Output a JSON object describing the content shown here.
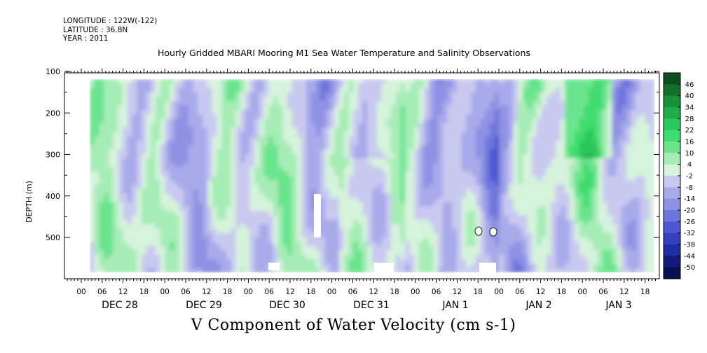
{
  "header": {
    "longitude": "LONGITUDE : 122W(-122)",
    "latitude": "LATITUDE : 36.8N",
    "year": "YEAR : 2011"
  },
  "chart_data": {
    "type": "heatmap",
    "title": "Hourly Gridded MBARI Mooring M1 Sea Water Temperature and Salinity Observations",
    "xlabel": "V Component of Water Velocity (cm s-1)",
    "ylabel": "DEPTH (m)",
    "yticks": [
      100,
      200,
      300,
      400,
      500
    ],
    "ylim": [
      500,
      20
    ],
    "hour_tick_labels": [
      "00",
      "06",
      "12",
      "18",
      "00",
      "06",
      "12",
      "18",
      "00",
      "06",
      "12",
      "18",
      "00",
      "06",
      "12",
      "18",
      "00",
      "06",
      "12",
      "18",
      "00",
      "06",
      "12",
      "18",
      "00",
      "06",
      "12",
      "18"
    ],
    "day_labels": [
      "DEC 28",
      "DEC 29",
      "DEC 30",
      "DEC 31",
      "JAN  1",
      "JAN  2",
      "JAN  3"
    ],
    "colorbar_labels": [
      "46",
      "40",
      "34",
      "28",
      "22",
      "16",
      "10",
      "4",
      "-2",
      "-8",
      "-14",
      "-20",
      "-26",
      "-32",
      "-38",
      "-44",
      "-50"
    ],
    "colorbar_colors": [
      "#0b4d1c",
      "#12702a",
      "#17913a",
      "#1fae4b",
      "#2bc85c",
      "#3fdc70",
      "#6be48d",
      "#a6ecb6",
      "#d6f3dc",
      "#c9c9f0",
      "#a9aaea",
      "#8f92e4",
      "#6f76db",
      "#4f58d2",
      "#3340bf",
      "#1f2ca2",
      "#121a7a",
      "#0a0f52"
    ],
    "series_note": "",
    "data_columns_hours": [
      0,
      6,
      12,
      18
    ]
  }
}
